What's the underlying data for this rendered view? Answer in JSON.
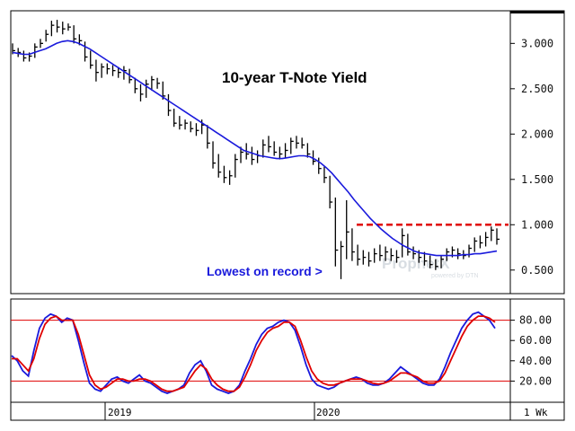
{
  "chart_data": [
    {
      "type": "line",
      "title": "10-year T-Note Yield",
      "annotation": "Lowest on record >",
      "watermark": "ProphetX",
      "watermark_sub": "powered by DTN",
      "ylim": [
        0.25,
        3.35
      ],
      "yticks": [
        "3.000",
        "2.500",
        "2.000",
        "1.500",
        "1.000",
        "0.500"
      ],
      "ytick_values": [
        3.0,
        2.5,
        2.0,
        1.5,
        1.0,
        0.5
      ],
      "resistance_level": 1.0,
      "resistance_color": "#e00000",
      "price_color": "#000000",
      "ma_color": "#1a1adc",
      "price": [
        {
          "h": 3.0,
          "l": 2.88,
          "c": 2.92
        },
        {
          "h": 2.95,
          "l": 2.85,
          "c": 2.9
        },
        {
          "h": 2.92,
          "l": 2.8,
          "c": 2.84
        },
        {
          "h": 2.9,
          "l": 2.8,
          "c": 2.86
        },
        {
          "h": 3.0,
          "l": 2.84,
          "c": 2.96
        },
        {
          "h": 3.05,
          "l": 2.95,
          "c": 3.0
        },
        {
          "h": 3.15,
          "l": 3.02,
          "c": 3.1
        },
        {
          "h": 3.25,
          "l": 3.08,
          "c": 3.2
        },
        {
          "h": 3.26,
          "l": 3.12,
          "c": 3.18
        },
        {
          "h": 3.24,
          "l": 3.1,
          "c": 3.16
        },
        {
          "h": 3.22,
          "l": 3.14,
          "c": 3.18
        },
        {
          "h": 3.2,
          "l": 3.0,
          "c": 3.05
        },
        {
          "h": 3.1,
          "l": 2.98,
          "c": 3.03
        },
        {
          "h": 3.02,
          "l": 2.8,
          "c": 2.85
        },
        {
          "h": 2.92,
          "l": 2.72,
          "c": 2.76
        },
        {
          "h": 2.82,
          "l": 2.58,
          "c": 2.68
        },
        {
          "h": 2.78,
          "l": 2.62,
          "c": 2.74
        },
        {
          "h": 2.78,
          "l": 2.66,
          "c": 2.72
        },
        {
          "h": 2.76,
          "l": 2.64,
          "c": 2.7
        },
        {
          "h": 2.74,
          "l": 2.62,
          "c": 2.68
        },
        {
          "h": 2.75,
          "l": 2.6,
          "c": 2.7
        },
        {
          "h": 2.72,
          "l": 2.56,
          "c": 2.6
        },
        {
          "h": 2.62,
          "l": 2.45,
          "c": 2.5
        },
        {
          "h": 2.55,
          "l": 2.36,
          "c": 2.44
        },
        {
          "h": 2.6,
          "l": 2.4,
          "c": 2.55
        },
        {
          "h": 2.64,
          "l": 2.48,
          "c": 2.6
        },
        {
          "h": 2.62,
          "l": 2.5,
          "c": 2.56
        },
        {
          "h": 2.58,
          "l": 2.38,
          "c": 2.42
        },
        {
          "h": 2.44,
          "l": 2.2,
          "c": 2.26
        },
        {
          "h": 2.28,
          "l": 2.08,
          "c": 2.12
        },
        {
          "h": 2.2,
          "l": 2.05,
          "c": 2.1
        },
        {
          "h": 2.16,
          "l": 2.05,
          "c": 2.12
        },
        {
          "h": 2.14,
          "l": 2.02,
          "c": 2.06
        },
        {
          "h": 2.12,
          "l": 1.98,
          "c": 2.04
        },
        {
          "h": 2.16,
          "l": 2.0,
          "c": 2.1
        },
        {
          "h": 2.1,
          "l": 1.84,
          "c": 1.9
        },
        {
          "h": 1.92,
          "l": 1.62,
          "c": 1.68
        },
        {
          "h": 1.78,
          "l": 1.52,
          "c": 1.58
        },
        {
          "h": 1.65,
          "l": 1.46,
          "c": 1.52
        },
        {
          "h": 1.6,
          "l": 1.44,
          "c": 1.54
        },
        {
          "h": 1.78,
          "l": 1.52,
          "c": 1.72
        },
        {
          "h": 1.86,
          "l": 1.68,
          "c": 1.8
        },
        {
          "h": 1.9,
          "l": 1.72,
          "c": 1.78
        },
        {
          "h": 1.86,
          "l": 1.66,
          "c": 1.72
        },
        {
          "h": 1.82,
          "l": 1.68,
          "c": 1.76
        },
        {
          "h": 1.94,
          "l": 1.74,
          "c": 1.88
        },
        {
          "h": 1.98,
          "l": 1.8,
          "c": 1.86
        },
        {
          "h": 1.92,
          "l": 1.76,
          "c": 1.8
        },
        {
          "h": 1.86,
          "l": 1.72,
          "c": 1.78
        },
        {
          "h": 1.9,
          "l": 1.74,
          "c": 1.82
        },
        {
          "h": 1.96,
          "l": 1.78,
          "c": 1.92
        },
        {
          "h": 1.98,
          "l": 1.84,
          "c": 1.9
        },
        {
          "h": 1.96,
          "l": 1.84,
          "c": 1.88
        },
        {
          "h": 1.9,
          "l": 1.74,
          "c": 1.78
        },
        {
          "h": 1.82,
          "l": 1.66,
          "c": 1.7
        },
        {
          "h": 1.74,
          "l": 1.56,
          "c": 1.62
        },
        {
          "h": 1.64,
          "l": 1.46,
          "c": 1.52
        },
        {
          "h": 1.54,
          "l": 1.18,
          "c": 1.25
        },
        {
          "h": 1.3,
          "l": 0.54,
          "c": 0.72
        },
        {
          "h": 0.82,
          "l": 0.4,
          "c": 0.76
        },
        {
          "h": 1.27,
          "l": 0.62,
          "c": 0.92
        },
        {
          "h": 0.96,
          "l": 0.6,
          "c": 0.7
        },
        {
          "h": 0.78,
          "l": 0.55,
          "c": 0.62
        },
        {
          "h": 0.72,
          "l": 0.56,
          "c": 0.64
        },
        {
          "h": 0.7,
          "l": 0.54,
          "c": 0.6
        },
        {
          "h": 0.74,
          "l": 0.58,
          "c": 0.68
        },
        {
          "h": 0.78,
          "l": 0.6,
          "c": 0.66
        },
        {
          "h": 0.76,
          "l": 0.6,
          "c": 0.7
        },
        {
          "h": 0.74,
          "l": 0.6,
          "c": 0.66
        },
        {
          "h": 0.72,
          "l": 0.58,
          "c": 0.64
        },
        {
          "h": 0.96,
          "l": 0.64,
          "c": 0.88
        },
        {
          "h": 0.9,
          "l": 0.66,
          "c": 0.7
        },
        {
          "h": 0.76,
          "l": 0.62,
          "c": 0.68
        },
        {
          "h": 0.72,
          "l": 0.58,
          "c": 0.64
        },
        {
          "h": 0.7,
          "l": 0.55,
          "c": 0.6
        },
        {
          "h": 0.66,
          "l": 0.52,
          "c": 0.56
        },
        {
          "h": 0.62,
          "l": 0.5,
          "c": 0.54
        },
        {
          "h": 0.66,
          "l": 0.52,
          "c": 0.62
        },
        {
          "h": 0.74,
          "l": 0.6,
          "c": 0.7
        },
        {
          "h": 0.76,
          "l": 0.64,
          "c": 0.72
        },
        {
          "h": 0.74,
          "l": 0.62,
          "c": 0.68
        },
        {
          "h": 0.72,
          "l": 0.62,
          "c": 0.66
        },
        {
          "h": 0.78,
          "l": 0.64,
          "c": 0.74
        },
        {
          "h": 0.86,
          "l": 0.7,
          "c": 0.82
        },
        {
          "h": 0.88,
          "l": 0.74,
          "c": 0.8
        },
        {
          "h": 0.92,
          "l": 0.76,
          "c": 0.86
        },
        {
          "h": 0.98,
          "l": 0.82,
          "c": 0.94
        },
        {
          "h": 0.96,
          "l": 0.78,
          "c": 0.84
        }
      ],
      "ma": [
        2.9,
        2.89,
        2.88,
        2.88,
        2.9,
        2.92,
        2.94,
        2.97,
        3.0,
        3.02,
        3.03,
        3.02,
        3.0,
        2.97,
        2.94,
        2.9,
        2.86,
        2.82,
        2.78,
        2.74,
        2.7,
        2.66,
        2.62,
        2.58,
        2.54,
        2.5,
        2.46,
        2.42,
        2.38,
        2.34,
        2.3,
        2.26,
        2.22,
        2.18,
        2.14,
        2.1,
        2.06,
        2.02,
        1.98,
        1.94,
        1.9,
        1.86,
        1.82,
        1.8,
        1.78,
        1.76,
        1.75,
        1.74,
        1.73,
        1.73,
        1.74,
        1.75,
        1.76,
        1.76,
        1.75,
        1.72,
        1.68,
        1.63,
        1.57,
        1.5,
        1.43,
        1.36,
        1.28,
        1.21,
        1.14,
        1.07,
        1.01,
        0.95,
        0.9,
        0.85,
        0.81,
        0.77,
        0.74,
        0.71,
        0.69,
        0.68,
        0.67,
        0.66,
        0.66,
        0.66,
        0.66,
        0.66,
        0.67,
        0.67,
        0.68,
        0.68,
        0.69,
        0.7,
        0.71
      ]
    },
    {
      "type": "line",
      "ylim": [
        0,
        100
      ],
      "yticks": [
        "80.00",
        "60.00",
        "40.00",
        "20.00"
      ],
      "ytick_values": [
        80,
        60,
        40,
        20
      ],
      "levels": [
        80,
        20
      ],
      "level_color": "#e00000",
      "series": [
        {
          "color": "#1a1adc",
          "values": [
            45,
            40,
            30,
            25,
            50,
            72,
            82,
            86,
            84,
            78,
            82,
            80,
            60,
            38,
            18,
            12,
            10,
            16,
            22,
            24,
            20,
            18,
            22,
            26,
            20,
            18,
            14,
            10,
            8,
            10,
            12,
            16,
            28,
            36,
            40,
            30,
            16,
            12,
            10,
            8,
            10,
            16,
            30,
            42,
            56,
            66,
            72,
            74,
            78,
            80,
            78,
            70,
            54,
            36,
            22,
            16,
            14,
            12,
            14,
            18,
            20,
            22,
            24,
            22,
            18,
            16,
            16,
            18,
            22,
            28,
            34,
            30,
            26,
            22,
            18,
            16,
            16,
            22,
            34,
            48,
            60,
            72,
            80,
            86,
            88,
            84,
            80,
            72
          ]
        },
        {
          "color": "#e00000",
          "values": [
            42,
            42,
            36,
            30,
            42,
            62,
            76,
            82,
            84,
            80,
            80,
            80,
            66,
            46,
            26,
            16,
            12,
            14,
            18,
            22,
            22,
            20,
            20,
            22,
            22,
            20,
            16,
            12,
            10,
            10,
            12,
            14,
            22,
            30,
            36,
            32,
            22,
            16,
            12,
            10,
            10,
            14,
            24,
            36,
            50,
            60,
            68,
            72,
            74,
            78,
            78,
            74,
            60,
            44,
            30,
            22,
            18,
            16,
            16,
            18,
            20,
            22,
            22,
            22,
            20,
            18,
            17,
            18,
            20,
            24,
            28,
            28,
            26,
            24,
            20,
            18,
            18,
            20,
            28,
            40,
            52,
            64,
            74,
            80,
            84,
            84,
            82,
            78
          ]
        }
      ]
    }
  ],
  "x_labels": [
    "2019",
    "2020"
  ],
  "timeframe_label": "1 Wk"
}
